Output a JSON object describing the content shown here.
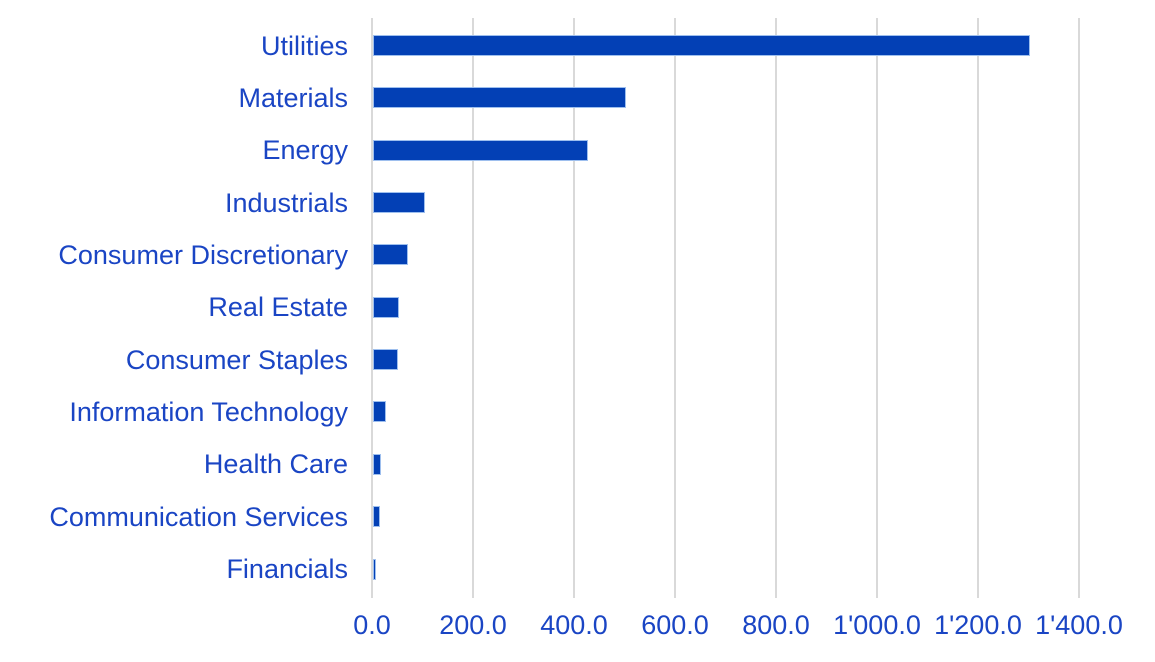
{
  "chart_data": {
    "type": "bar",
    "orientation": "horizontal",
    "title": "",
    "xlabel": "",
    "ylabel": "",
    "categories": [
      "Utilities",
      "Materials",
      "Energy",
      "Industrials",
      "Consumer Discretionary",
      "Real Estate",
      "Consumer Staples",
      "Information Technology",
      "Health Care",
      "Communication Services",
      "Financials"
    ],
    "values": [
      1300,
      500,
      425,
      103,
      70,
      51,
      49,
      26,
      16,
      14,
      5
    ],
    "x_tick_labels": [
      "0.0",
      "200.0",
      "400.0",
      "600.0",
      "800.0",
      "1'000.0",
      "1'200.0",
      "1'400.0"
    ],
    "x_tick_values": [
      0,
      200,
      400,
      600,
      800,
      1000,
      1200,
      1400
    ],
    "xlim": [
      0,
      1400
    ],
    "grid": "vertical-only",
    "legend": "none",
    "colors": {
      "bar_fill": "#0340b5",
      "bar_border": "#9ebfee",
      "label_text": "#1a45c4",
      "gridline": "#d9d9d9",
      "background": "#ffffff"
    }
  }
}
